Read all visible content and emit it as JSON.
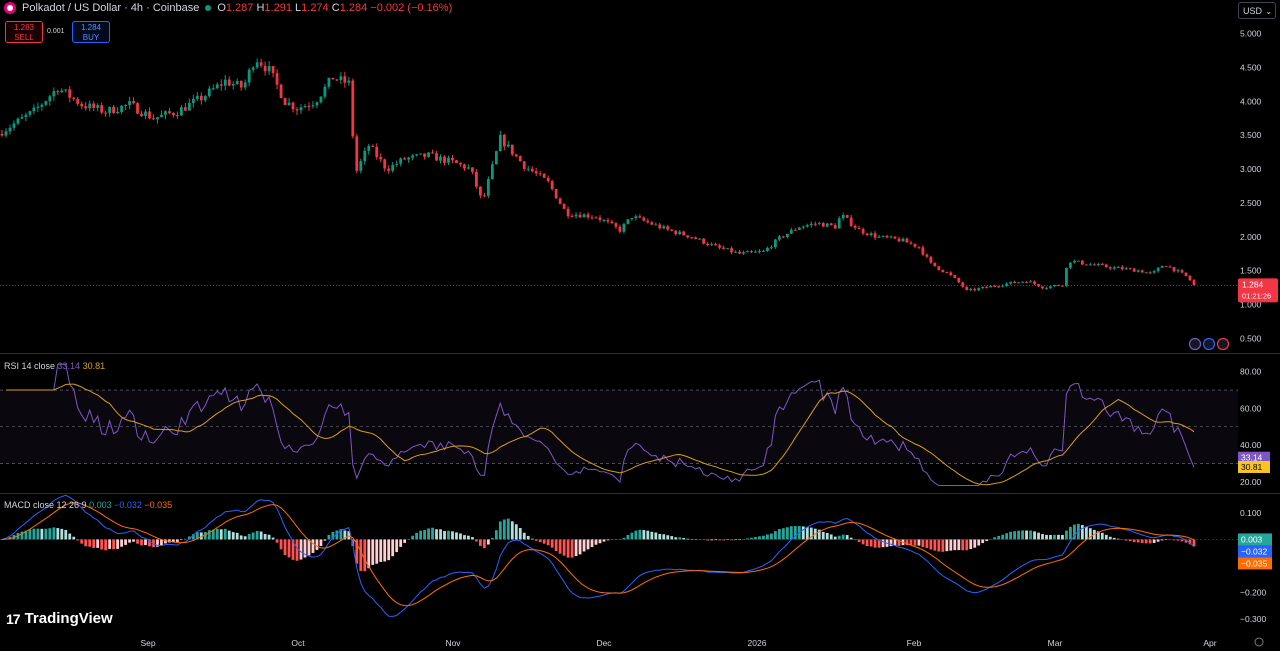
{
  "header": {
    "symbol": "Polkadot / US Dollar · 4h · Coinbase",
    "ohlc": [
      {
        "k": "O",
        "v": "1.287"
      },
      {
        "k": "H",
        "v": "1.291"
      },
      {
        "k": "L",
        "v": "1.274"
      },
      {
        "k": "C",
        "v": "1.284"
      }
    ],
    "change": "−0.002 (−0.16%)"
  },
  "trade": {
    "sell_price": "1.283",
    "sell_label": "SELL",
    "spread": "0.001",
    "buy_price": "1.284",
    "buy_label": "BUY"
  },
  "currency": "USD",
  "brand": "TradingView",
  "colors": {
    "up": "#089981",
    "down": "#f23645",
    "rsi": "#7e57c2",
    "rsi_ma": "#d4a017",
    "macd": "#2962ff",
    "signal": "#ff6d00"
  },
  "chart_data": [
    {
      "type": "candlestick",
      "title": "Polkadot / US Dollar · 4h · Coinbase",
      "x_ticks": [
        "Sep",
        "Oct",
        "Nov",
        "Dec",
        "2026",
        "Feb",
        "Mar",
        "Apr"
      ],
      "y_ticks": [
        "5.000",
        "4.500",
        "4.000",
        "3.500",
        "3.000",
        "2.500",
        "2.000",
        "1.500",
        "1.000",
        "0.500"
      ],
      "ylim": [
        0.3,
        5.2
      ],
      "last_price": "1.284",
      "countdown": "01:21:26",
      "close_path": [
        [
          0,
          3.52
        ],
        [
          0.03,
          3.85
        ],
        [
          0.05,
          4.2
        ],
        [
          0.07,
          3.95
        ],
        [
          0.09,
          3.85
        ],
        [
          0.11,
          3.95
        ],
        [
          0.13,
          3.75
        ],
        [
          0.15,
          3.85
        ],
        [
          0.17,
          4.05
        ],
        [
          0.19,
          4.3
        ],
        [
          0.205,
          4.2
        ],
        [
          0.215,
          4.65
        ],
        [
          0.227,
          4.45
        ],
        [
          0.24,
          4.0
        ],
        [
          0.25,
          3.9
        ],
        [
          0.265,
          4.0
        ],
        [
          0.28,
          4.35
        ],
        [
          0.295,
          4.25
        ],
        [
          0.298,
          2.9
        ],
        [
          0.31,
          3.35
        ],
        [
          0.325,
          3.0
        ],
        [
          0.34,
          3.15
        ],
        [
          0.36,
          3.2
        ],
        [
          0.38,
          3.1
        ],
        [
          0.395,
          3.0
        ],
        [
          0.405,
          2.5
        ],
        [
          0.42,
          3.45
        ],
        [
          0.44,
          3.05
        ],
        [
          0.46,
          2.8
        ],
        [
          0.475,
          2.35
        ],
        [
          0.5,
          2.3
        ],
        [
          0.52,
          2.1
        ],
        [
          0.53,
          2.3
        ],
        [
          0.545,
          2.2
        ],
        [
          0.56,
          2.1
        ],
        [
          0.58,
          2.0
        ],
        [
          0.6,
          1.85
        ],
        [
          0.62,
          1.75
        ],
        [
          0.64,
          1.78
        ],
        [
          0.655,
          2.0
        ],
        [
          0.67,
          2.15
        ],
        [
          0.685,
          2.2
        ],
        [
          0.7,
          2.15
        ],
        [
          0.705,
          2.32
        ],
        [
          0.72,
          2.1
        ],
        [
          0.735,
          2.0
        ],
        [
          0.755,
          1.95
        ],
        [
          0.77,
          1.85
        ],
        [
          0.78,
          1.6
        ],
        [
          0.795,
          1.45
        ],
        [
          0.805,
          1.3
        ],
        [
          0.81,
          1.2
        ],
        [
          0.825,
          1.25
        ],
        [
          0.84,
          1.3
        ],
        [
          0.86,
          1.35
        ],
        [
          0.875,
          1.25
        ],
        [
          0.89,
          1.3
        ],
        [
          0.895,
          1.65
        ],
        [
          0.91,
          1.6
        ],
        [
          0.93,
          1.55
        ],
        [
          0.955,
          1.5
        ],
        [
          0.965,
          1.45
        ],
        [
          0.975,
          1.6
        ],
        [
          0.985,
          1.5
        ],
        [
          0.995,
          1.4
        ],
        [
          1.0,
          1.284
        ]
      ]
    },
    {
      "type": "line",
      "title": "RSI 14 close",
      "series": [
        {
          "name": "RSI",
          "last": "33.14"
        },
        {
          "name": "RSI-based MA",
          "last": "30.81"
        }
      ],
      "y_ticks": [
        "80.00",
        "60.00",
        "40.00",
        "20.00"
      ],
      "ylim": [
        15,
        88
      ],
      "bands": [
        70,
        50,
        30
      ]
    },
    {
      "type": "bar+line",
      "title": "MACD close 12 26 9",
      "series": [
        {
          "name": "Histogram",
          "last": "0.003"
        },
        {
          "name": "MACD",
          "last": "−0.032"
        },
        {
          "name": "Signal",
          "last": "−0.035"
        }
      ],
      "y_ticks": [
        "0.100",
        "−0.100",
        "−0.200",
        "−0.300"
      ],
      "ylim": [
        -0.33,
        0.16
      ]
    }
  ]
}
